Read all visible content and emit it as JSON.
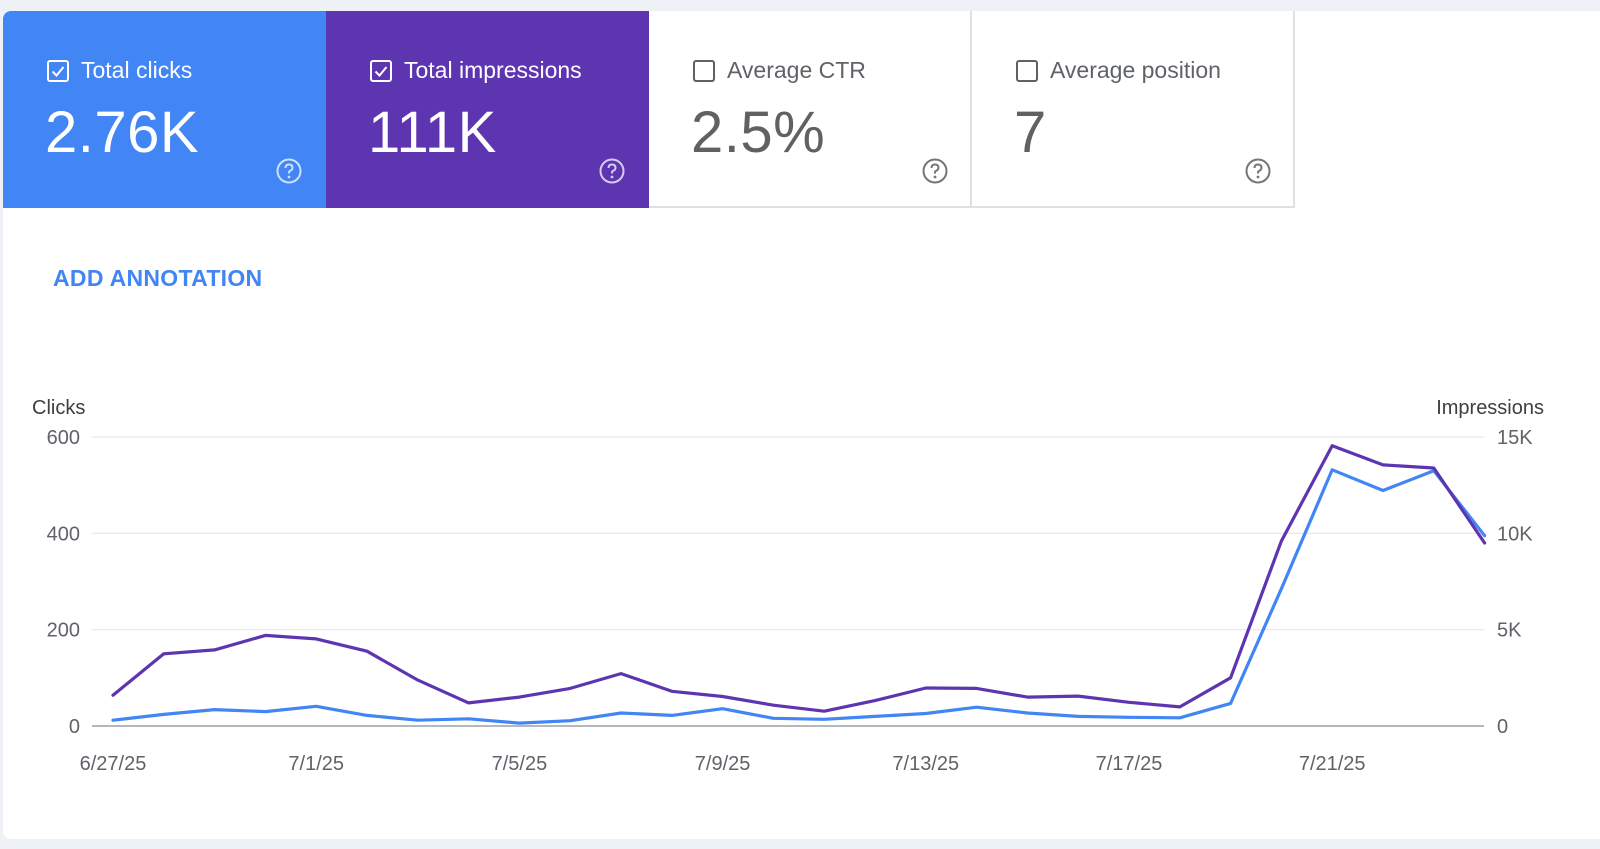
{
  "cards": [
    {
      "label": "Total clicks",
      "value": "2.76K",
      "checked": true,
      "color": "#4285f4"
    },
    {
      "label": "Total impressions",
      "value": "111K",
      "checked": true,
      "color": "#5e35b1"
    },
    {
      "label": "Average CTR",
      "value": "2.5%",
      "checked": false
    },
    {
      "label": "Average position",
      "value": "7",
      "checked": false
    }
  ],
  "annotation_label": "ADD ANNOTATION",
  "chart_data": {
    "type": "line",
    "x": [
      "6/27/25",
      "6/28/25",
      "6/29/25",
      "6/30/25",
      "7/1/25",
      "7/2/25",
      "7/3/25",
      "7/4/25",
      "7/5/25",
      "7/6/25",
      "7/7/25",
      "7/8/25",
      "7/9/25",
      "7/10/25",
      "7/11/25",
      "7/12/25",
      "7/13/25",
      "7/14/25",
      "7/15/25",
      "7/16/25",
      "7/17/25",
      "7/18/25",
      "7/19/25",
      "7/20/25",
      "7/21/25",
      "7/22/25",
      "7/23/25",
      "7/24/25"
    ],
    "x_tick_labels": [
      "6/27/25",
      "7/1/25",
      "7/5/25",
      "7/9/25",
      "7/13/25",
      "7/17/25",
      "7/21/25"
    ],
    "series": [
      {
        "name": "Clicks",
        "axis": "left",
        "color": "#4285f4",
        "values": [
          12,
          24,
          34,
          30,
          41,
          22,
          12,
          15,
          6,
          11,
          27,
          22,
          36,
          16,
          14,
          20,
          26,
          39,
          27,
          20,
          18,
          17,
          47,
          285,
          532,
          489,
          530,
          395
        ]
      },
      {
        "name": "Impressions",
        "axis": "right",
        "color": "#5e35b1",
        "values": [
          1600,
          3750,
          3950,
          4700,
          4520,
          3880,
          2380,
          1200,
          1500,
          1950,
          2720,
          1800,
          1530,
          1080,
          770,
          1320,
          1970,
          1950,
          1500,
          1550,
          1230,
          990,
          2500,
          9600,
          14550,
          13550,
          13390,
          9500
        ]
      }
    ],
    "y_left": {
      "title": "Clicks",
      "ticks": [
        "0",
        "200",
        "400",
        "600"
      ],
      "min": 0,
      "max": 600
    },
    "y_right": {
      "title": "Impressions",
      "ticks": [
        "0",
        "5K",
        "10K",
        "15K"
      ],
      "min": 0,
      "max": 15000
    },
    "grid": true
  }
}
